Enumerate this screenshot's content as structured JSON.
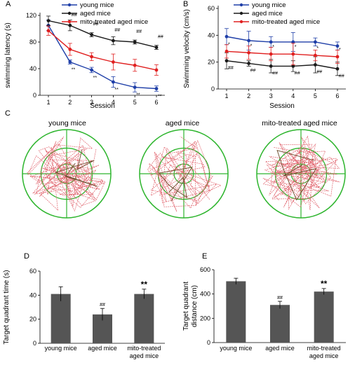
{
  "chart_data": [
    {
      "panel": "A",
      "type": "line",
      "ylabel": "swimming latency (s)",
      "xlabel": "Session",
      "x": [
        1,
        2,
        3,
        4,
        5,
        6
      ],
      "ylim": [
        0,
        120
      ],
      "yticks": [
        0,
        40,
        80,
        120
      ],
      "legend_position": "top-right",
      "series": [
        {
          "name": "young mice",
          "color": "#1f3fa8",
          "values": [
            105,
            50,
            38,
            20,
            12,
            10
          ],
          "errors": [
            8,
            3,
            4,
            8,
            7,
            4
          ],
          "labels": [
            "",
            "**",
            "**",
            "**",
            "**",
            "**"
          ]
        },
        {
          "name": "aged mice",
          "color": "#1a1a1a",
          "values": [
            112,
            105,
            91,
            82,
            80,
            72
          ],
          "errors": [
            7,
            8,
            3,
            6,
            3,
            3
          ],
          "labels": [
            "",
            "##",
            "##",
            "##",
            "##",
            "##"
          ]
        },
        {
          "name": "mito-treated aged mice",
          "color": "#e02020",
          "values": [
            97,
            69,
            58,
            50,
            45,
            38
          ],
          "errors": [
            7,
            9,
            6,
            12,
            9,
            8
          ],
          "labels": [
            "",
            "",
            "",
            "",
            "",
            ""
          ]
        }
      ]
    },
    {
      "panel": "B",
      "type": "line",
      "ylabel": "Swimming velocity (cm/s)",
      "xlabel": "Session",
      "x": [
        1,
        2,
        3,
        4,
        5,
        6
      ],
      "ylim": [
        0,
        60
      ],
      "yticks": [
        0,
        20,
        40,
        60
      ],
      "legend_position": "top",
      "series": [
        {
          "name": "young mice",
          "color": "#1f3fa8",
          "values": [
            39,
            36,
            35,
            35,
            35,
            32
          ],
          "errors": [
            6,
            7,
            4,
            7,
            3,
            3
          ],
          "labels": [
            "",
            "",
            "",
            "",
            "",
            ""
          ]
        },
        {
          "name": "aged mice",
          "color": "#1a1a1a",
          "values": [
            21,
            19,
            17,
            17,
            18,
            15
          ],
          "errors": [
            6,
            2,
            5,
            4,
            6,
            5
          ],
          "labels": [
            "##",
            "##",
            "##",
            "##",
            "##",
            "##"
          ]
        },
        {
          "name": "mito-treated aged mice",
          "color": "#e02020",
          "values": [
            28,
            27,
            26,
            26,
            25,
            24
          ],
          "errors": [
            5,
            5,
            5,
            8,
            4,
            5
          ],
          "labels": [
            "*",
            "*",
            "*",
            "*",
            "*",
            "*"
          ]
        }
      ]
    },
    {
      "panel": "D",
      "type": "bar",
      "ylabel": "Target quadrant time (s)",
      "categories": [
        "young mice",
        "aged mice",
        "mito-treated aged mice"
      ],
      "values": [
        41,
        24,
        41
      ],
      "errors": [
        6,
        5,
        4
      ],
      "labels": [
        "",
        "##",
        "**"
      ],
      "ylim": [
        0,
        60
      ],
      "yticks": [
        0,
        20,
        40,
        60
      ],
      "bar_color": "#555555"
    },
    {
      "panel": "E",
      "type": "bar",
      "ylabel": "Target quadrant distance (cm)",
      "categories": [
        "young mice",
        "aged mice",
        "mito-treated aged mice"
      ],
      "values": [
        505,
        310,
        420
      ],
      "errors": [
        25,
        30,
        25
      ],
      "labels": [
        "",
        "##",
        "**"
      ],
      "ylim": [
        0,
        600
      ],
      "yticks": [
        0,
        200,
        400,
        600
      ],
      "bar_color": "#555555"
    }
  ],
  "panel_c": {
    "letter": "C",
    "titles": [
      "young mice",
      "aged mice",
      "mito-treated aged mice"
    ],
    "ring_color": "#2db52d",
    "path_color": "#e0606a"
  }
}
